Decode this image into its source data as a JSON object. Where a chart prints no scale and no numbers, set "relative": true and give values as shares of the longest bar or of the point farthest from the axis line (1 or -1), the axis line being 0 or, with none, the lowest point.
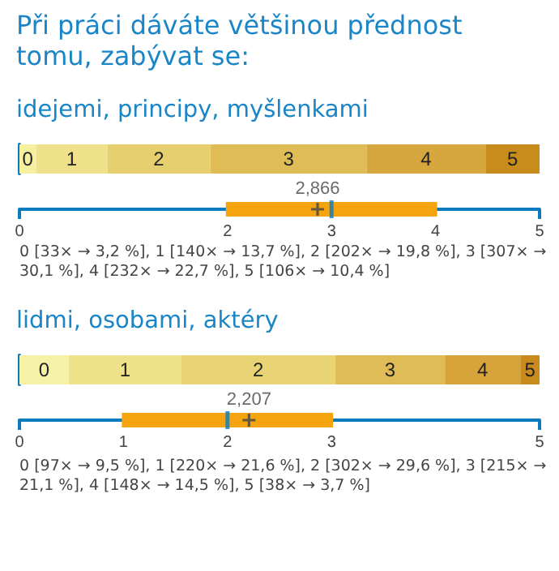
{
  "chart_data": [
    {
      "type": "bar",
      "title": "Při práci dáváte většinou přednost tomu, zabývat se:",
      "subtitle": "idejemi, principy, myšlenkami",
      "orientation": "horizontal",
      "stacked": true,
      "relative": true,
      "categories": [
        null
      ],
      "series": [
        {
          "name": "0",
          "color": "#f5efa0",
          "values": [
            0.032
          ]
        },
        {
          "name": "1",
          "color": "#efe08a",
          "values": [
            0.137
          ]
        },
        {
          "name": "2",
          "color": "#e6cf6e",
          "values": [
            0.198
          ]
        },
        {
          "name": "3",
          "color": "#dfbc55",
          "values": [
            0.301
          ]
        },
        {
          "name": "4",
          "color": "#d6a73e",
          "values": [
            0.228
          ]
        },
        {
          "name": "5",
          "color": "#c98c1c",
          "values": [
            0.104
          ]
        }
      ]
    },
    {
      "type": "box",
      "orientation": "horizontal",
      "categories": [
        null
      ],
      "xlim": [
        0,
        5
      ],
      "xticks": [
        0,
        2,
        3,
        4,
        5
      ],
      "tick_labels": "x",
      "marker": "cross",
      "series": [
        {
          "color": "#f5a30f",
          "boxes": [
            {
              "q1": 2,
              "median": 3,
              "q3": 4,
              "mean": 2.866
            }
          ],
          "value_labels": [
            "2,866"
          ]
        }
      ],
      "annotations": [
        "0 [33× → 3,2 %], 1 [140× → 13,7 %], 2 [202× → 19,8 %], 3 [307× → 30,1 %], 4 [232× → 22,7 %], 5 [106× → 10,4 %]"
      ]
    },
    {
      "type": "bar",
      "subtitle": "lidmi, osobami, aktéry",
      "orientation": "horizontal",
      "stacked": true,
      "relative": true,
      "categories": [
        null
      ],
      "series": [
        {
          "name": "0",
          "color": "#f5f2a8",
          "values": [
            0.095
          ]
        },
        {
          "name": "1",
          "color": "#efe08a",
          "values": [
            0.216
          ]
        },
        {
          "name": "2",
          "color": "#e8d474",
          "values": [
            0.296
          ]
        },
        {
          "name": "3",
          "color": "#dfbc55",
          "values": [
            0.211
          ]
        },
        {
          "name": "4",
          "color": "#d6a43a",
          "values": [
            0.145
          ]
        },
        {
          "name": "5",
          "color": "#c98c1c",
          "values": [
            0.037
          ]
        }
      ]
    },
    {
      "type": "box",
      "orientation": "horizontal",
      "categories": [
        null
      ],
      "xlim": [
        0,
        5
      ],
      "xticks": [
        0,
        1,
        2,
        3,
        5
      ],
      "tick_labels": "x",
      "marker": "cross",
      "series": [
        {
          "color": "#f5a30f",
          "boxes": [
            {
              "q1": 1,
              "median": 2,
              "q3": 3,
              "mean": 2.207
            }
          ],
          "value_labels": [
            "2,207"
          ]
        }
      ],
      "annotations": [
        "0 [97× → 9,5 %], 1 [220× → 21,6 %], 2 [302× → 29,6 %], 3 [215× → 21,1 %], 4 [148× → 14,5 %], 5 [38× → 3,7 %]"
      ]
    }
  ]
}
